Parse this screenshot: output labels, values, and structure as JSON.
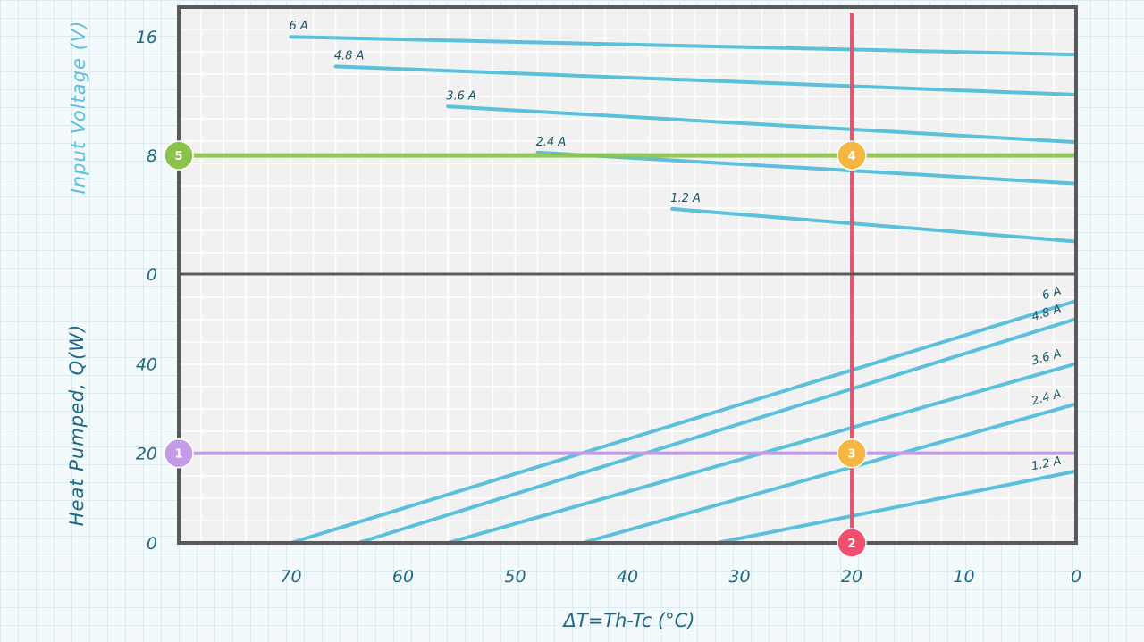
{
  "chart_data": [
    {
      "type": "line",
      "panel": "top",
      "ylabel": "Input Voltage (V)",
      "ylim": [
        0,
        18
      ],
      "yticks": [
        0,
        8,
        16
      ],
      "xlim": [
        0,
        80
      ],
      "x_reversed": true,
      "series": [
        {
          "name": "6 A",
          "x": [
            70,
            0
          ],
          "y": [
            16,
            14.8
          ]
        },
        {
          "name": "4.8 A",
          "x": [
            66,
            0
          ],
          "y": [
            14,
            12.1
          ]
        },
        {
          "name": "3.6 A",
          "x": [
            56,
            0
          ],
          "y": [
            11.3,
            8.9
          ]
        },
        {
          "name": "2.4 A",
          "x": [
            48,
            0
          ],
          "y": [
            8.2,
            6.1
          ]
        },
        {
          "name": "1.2 A",
          "x": [
            36,
            0
          ],
          "y": [
            4.4,
            2.2
          ]
        }
      ]
    },
    {
      "type": "line",
      "panel": "bottom",
      "xlabel": "ΔT=Th-Tc (°C)",
      "ylabel": "Heat Pumped, Q(W)",
      "ylim": [
        0,
        60
      ],
      "yticks": [
        0,
        20,
        40
      ],
      "xlim": [
        0,
        80
      ],
      "x_reversed": true,
      "xticks": [
        70,
        60,
        50,
        40,
        30,
        20,
        10,
        0
      ],
      "series": [
        {
          "name": "6 A",
          "x": [
            70,
            0
          ],
          "y": [
            0,
            54
          ]
        },
        {
          "name": "4.8 A",
          "x": [
            64,
            0
          ],
          "y": [
            0,
            50
          ]
        },
        {
          "name": "3.6 A",
          "x": [
            56,
            0
          ],
          "y": [
            0,
            40
          ]
        },
        {
          "name": "2.4 A",
          "x": [
            44,
            0
          ],
          "y": [
            0,
            31
          ]
        },
        {
          "name": "1.2 A",
          "x": [
            32,
            0
          ],
          "y": [
            0,
            16
          ]
        }
      ]
    }
  ],
  "colors": {
    "current_lines": "#5bc0dc",
    "voltage_ref_line": "#8bc34a",
    "heat_ref_line": "#c39be6",
    "delta_t_line": "#f0506e",
    "intersection_marker": "#f5b642",
    "frame": "#5a5a5a"
  },
  "reference_lines": {
    "delta_t": 20,
    "heat_pumped": 20,
    "voltage": 8
  },
  "markers": [
    {
      "label": "1",
      "panel": "bottom",
      "x": 80,
      "y": 20,
      "color": "#c39be6"
    },
    {
      "label": "2",
      "panel": "bottom",
      "x": 20,
      "y": 0,
      "color": "#f0506e"
    },
    {
      "label": "3",
      "panel": "bottom",
      "x": 20,
      "y": 20,
      "color": "#f5b642"
    },
    {
      "label": "4",
      "panel": "top",
      "x": 20,
      "y": 8,
      "color": "#f5b642"
    },
    {
      "label": "5",
      "panel": "top",
      "x": 80,
      "y": 8,
      "color": "#8bc34a"
    }
  ]
}
